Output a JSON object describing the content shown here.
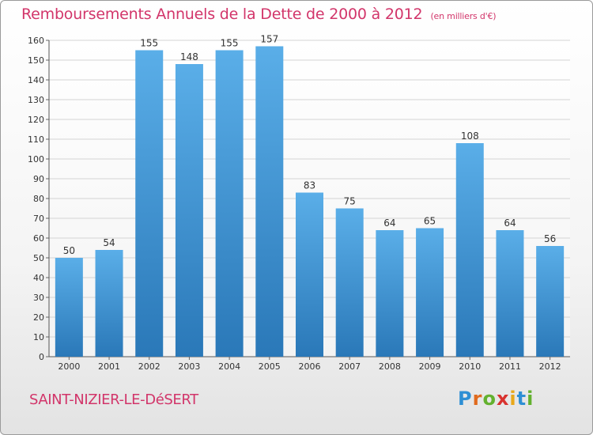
{
  "header": {
    "title": "Remboursements Annuels de la Dette de 2000 à 2012",
    "unit": "(en milliers d'€)"
  },
  "footer": {
    "commune": "SAINT-NIZIER-LE-DéSERT",
    "logo_letters": [
      "P",
      "r",
      "o",
      "x",
      "i",
      "t",
      "i"
    ],
    "logo_colors": [
      "#2e8fd4",
      "#e06a1e",
      "#63b12f",
      "#d8322f",
      "#e8a81a",
      "#2e8fd4",
      "#63b12f"
    ]
  },
  "chart_data": {
    "type": "bar",
    "title": "Remboursements Annuels de la Dette de 2000 à 2012",
    "subtitle": "(en milliers d'€)",
    "categories": [
      "2000",
      "2001",
      "2002",
      "2003",
      "2004",
      "2005",
      "2006",
      "2007",
      "2008",
      "2009",
      "2010",
      "2011",
      "2012"
    ],
    "values": [
      50,
      54,
      155,
      148,
      155,
      157,
      83,
      75,
      64,
      65,
      108,
      64,
      56
    ],
    "ylim": [
      0,
      160
    ],
    "yticks": [
      0,
      10,
      20,
      30,
      40,
      50,
      60,
      70,
      80,
      90,
      100,
      110,
      120,
      130,
      140,
      150,
      160
    ],
    "grid": true,
    "bar_color_top": "#5aaee8",
    "bar_color_bottom": "#2a78b8"
  }
}
